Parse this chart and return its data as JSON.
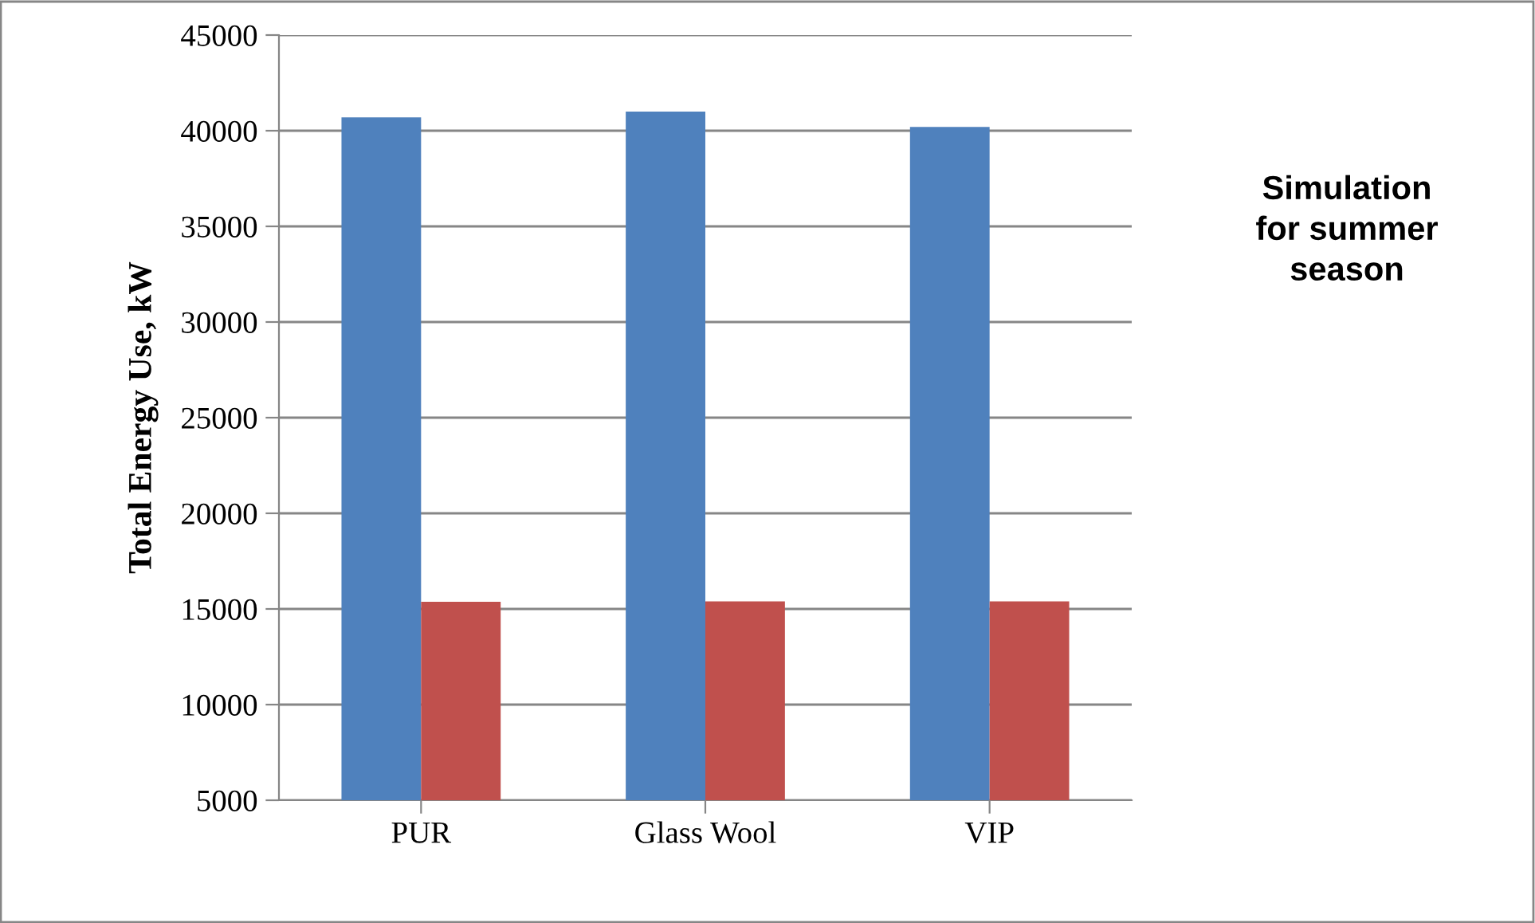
{
  "chart_data": {
    "type": "bar",
    "title": "Simulation\nfor summer\nseason",
    "ylabel": "Total Energy Use, kW",
    "categories": [
      "PUR",
      "Glass Wool",
      "VIP"
    ],
    "series": [
      {
        "color": "#4f81bd",
        "values": [
          40700,
          41000,
          40200
        ]
      },
      {
        "color": "#c0504d",
        "values": [
          15370,
          15400,
          15400
        ]
      }
    ],
    "ylim": [
      5000,
      45000
    ],
    "yticks": [
      5000,
      10000,
      15000,
      20000,
      25000,
      30000,
      35000,
      40000,
      45000
    ],
    "grid": "y"
  }
}
